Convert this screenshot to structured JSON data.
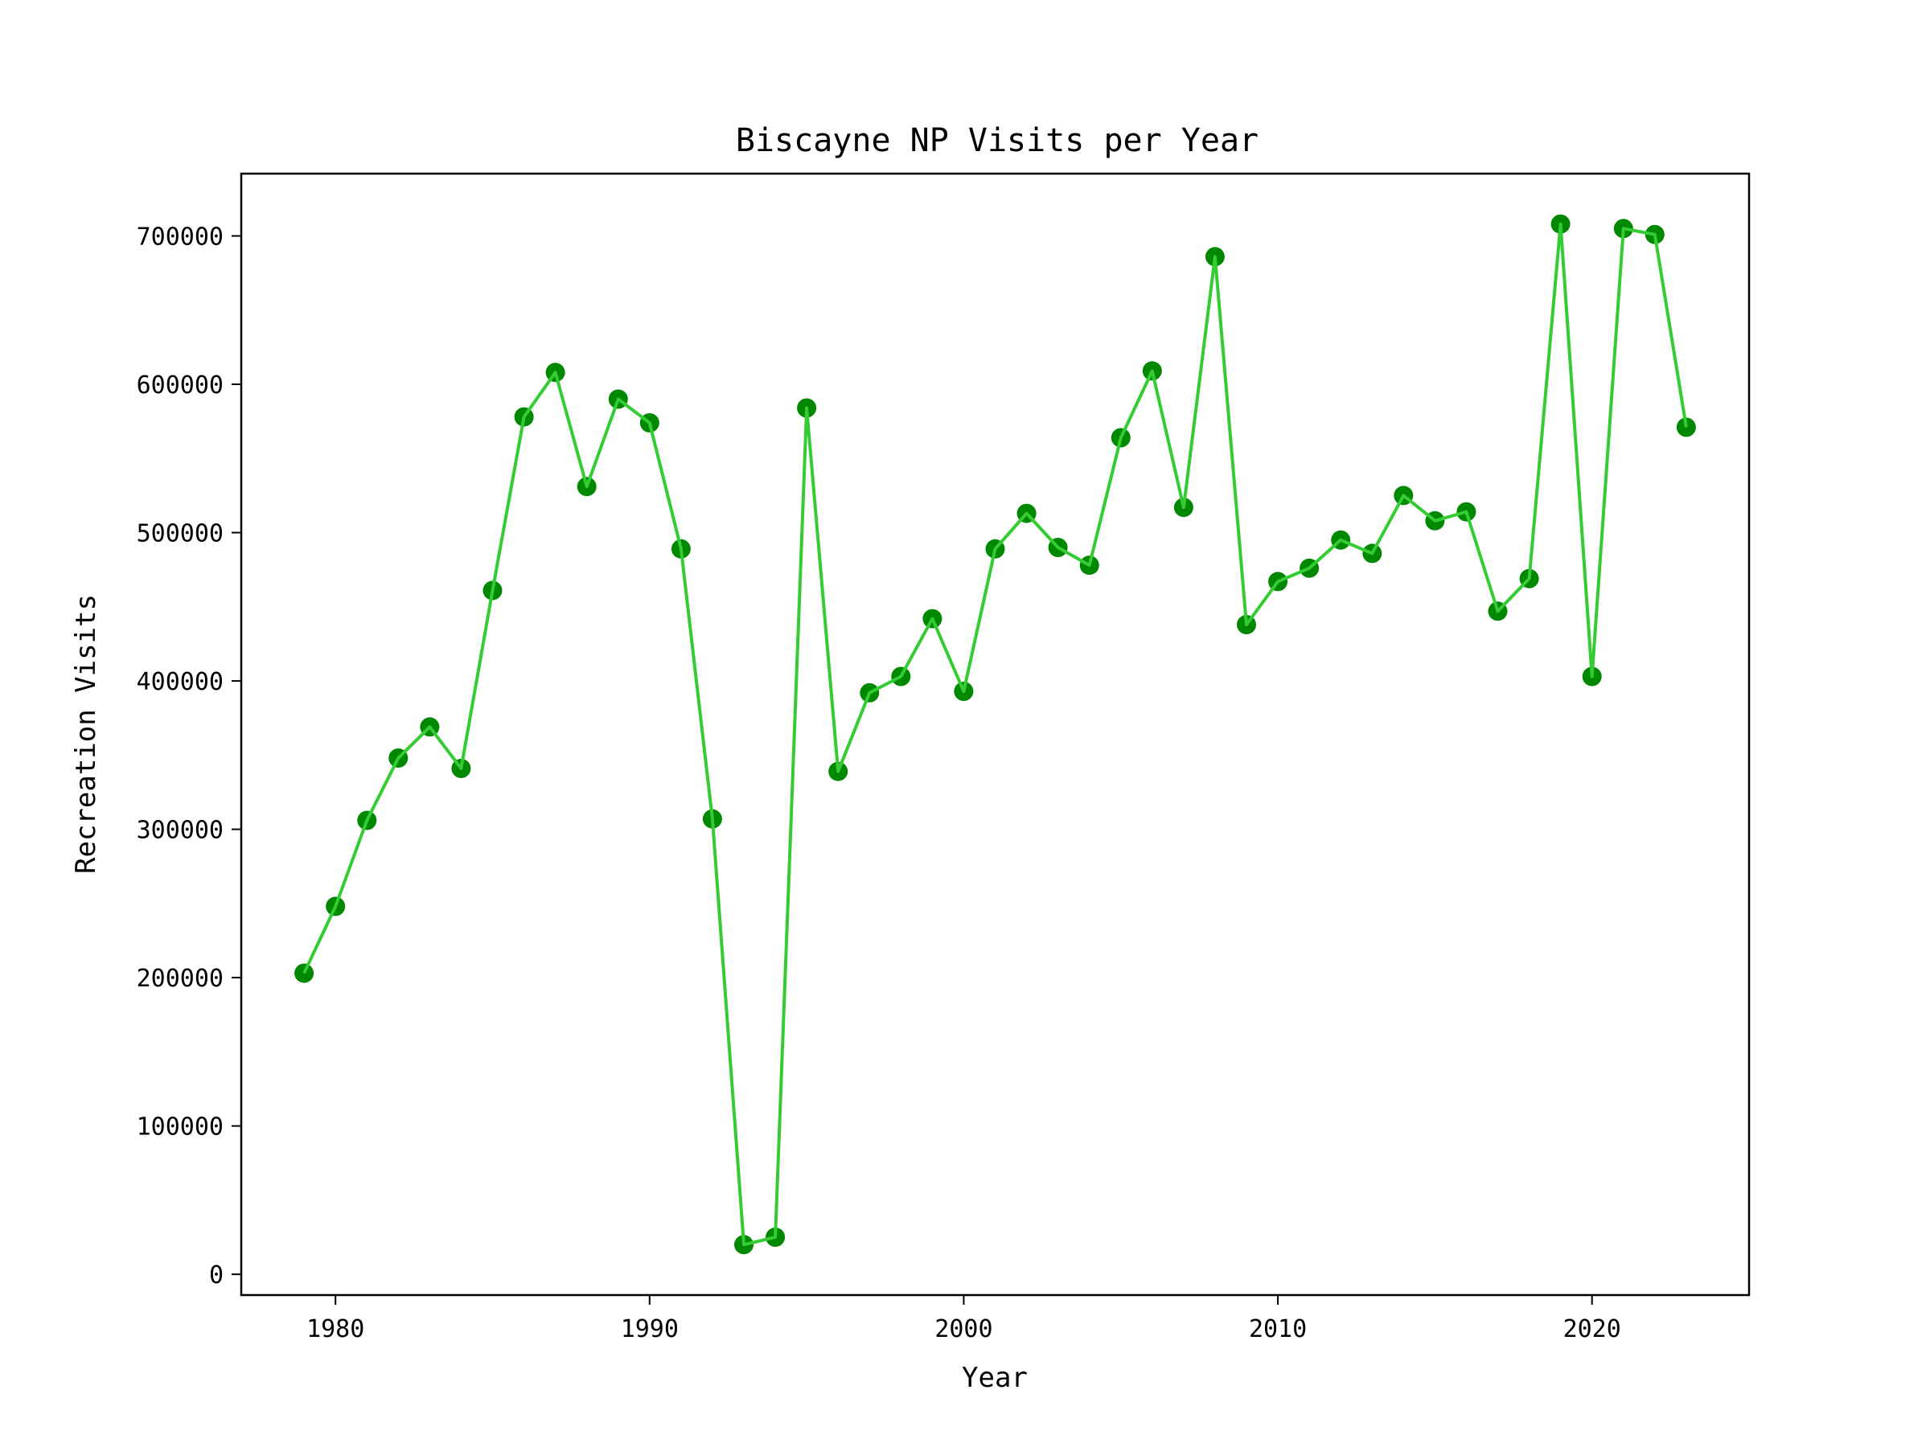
{
  "chart_data": {
    "type": "line",
    "title": "Biscayne NP Visits per Year",
    "xlabel": "Year",
    "ylabel": "Recreation Visits",
    "xlim": [
      1977,
      2025
    ],
    "ylim": [
      -14000,
      742000
    ],
    "xticks": [
      1980,
      1990,
      2000,
      2010,
      2020
    ],
    "yticks": [
      0,
      100000,
      200000,
      300000,
      400000,
      500000,
      600000,
      700000
    ],
    "grid": false,
    "line_color": "#33cc33",
    "marker_color": "#008800",
    "series": [
      {
        "x": [
          1979,
          1980,
          1981,
          1982,
          1983,
          1984,
          1985,
          1986,
          1987,
          1988,
          1989,
          1990,
          1991,
          1992,
          1993,
          1994,
          1995,
          1996,
          1997,
          1998,
          1999,
          2000,
          2001,
          2002,
          2003,
          2004,
          2005,
          2006,
          2007,
          2008,
          2009,
          2010,
          2011,
          2012,
          2013,
          2014,
          2015,
          2016,
          2017,
          2018,
          2019,
          2020,
          2021,
          2022,
          2023
        ],
        "values": [
          203000,
          248000,
          306000,
          348000,
          369000,
          341000,
          461000,
          578000,
          608000,
          531000,
          590000,
          574000,
          489000,
          307000,
          20000,
          25000,
          584000,
          339000,
          392000,
          403000,
          442000,
          393000,
          489000,
          513000,
          490000,
          478000,
          564000,
          609000,
          517000,
          686000,
          438000,
          467000,
          476000,
          495000,
          486000,
          525000,
          508000,
          514000,
          447000,
          469000,
          708000,
          403000,
          705000,
          701000,
          571000
        ]
      }
    ]
  }
}
